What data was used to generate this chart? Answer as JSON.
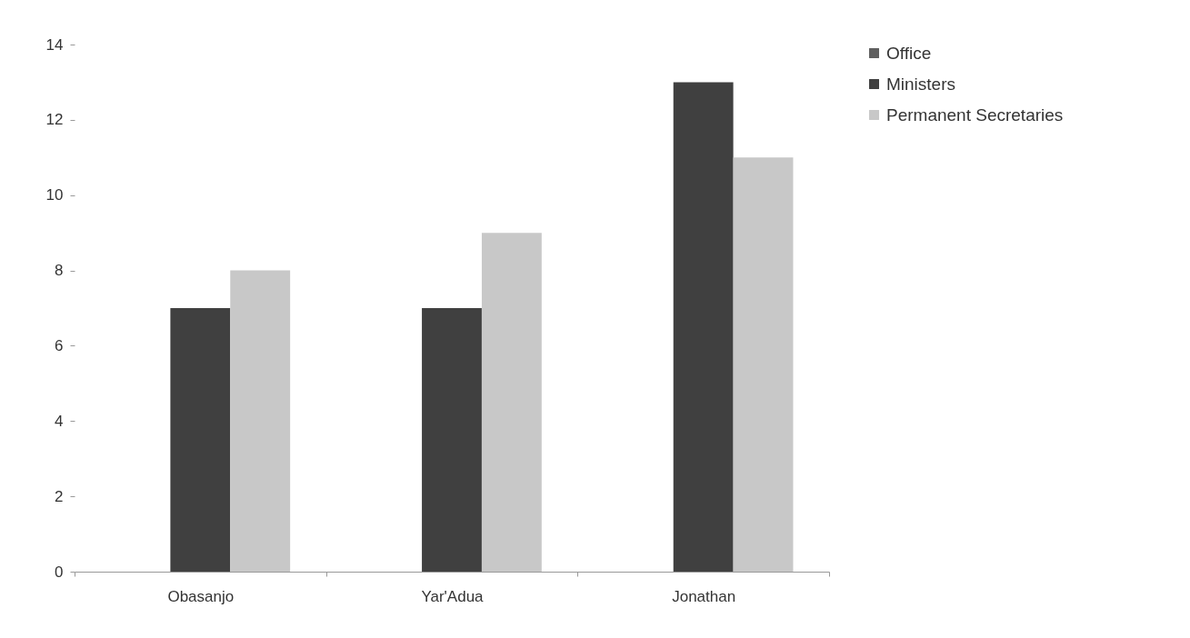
{
  "chart_data": {
    "type": "bar",
    "categories": [
      "Obasanjo",
      "Yar'Adua",
      "Jonathan"
    ],
    "series": [
      {
        "name": "Office",
        "color": "#5f5f5f",
        "values": [
          null,
          null,
          null
        ]
      },
      {
        "name": "Ministers",
        "color": "#404040",
        "values": [
          7,
          7,
          13
        ]
      },
      {
        "name": "Permanent Secretaries",
        "color": "#c8c8c8",
        "values": [
          8,
          9,
          11
        ]
      }
    ],
    "ylim": [
      0,
      14
    ],
    "yticks": [
      0,
      2,
      4,
      6,
      8,
      10,
      12,
      14
    ],
    "grid": false,
    "legend": "right"
  }
}
